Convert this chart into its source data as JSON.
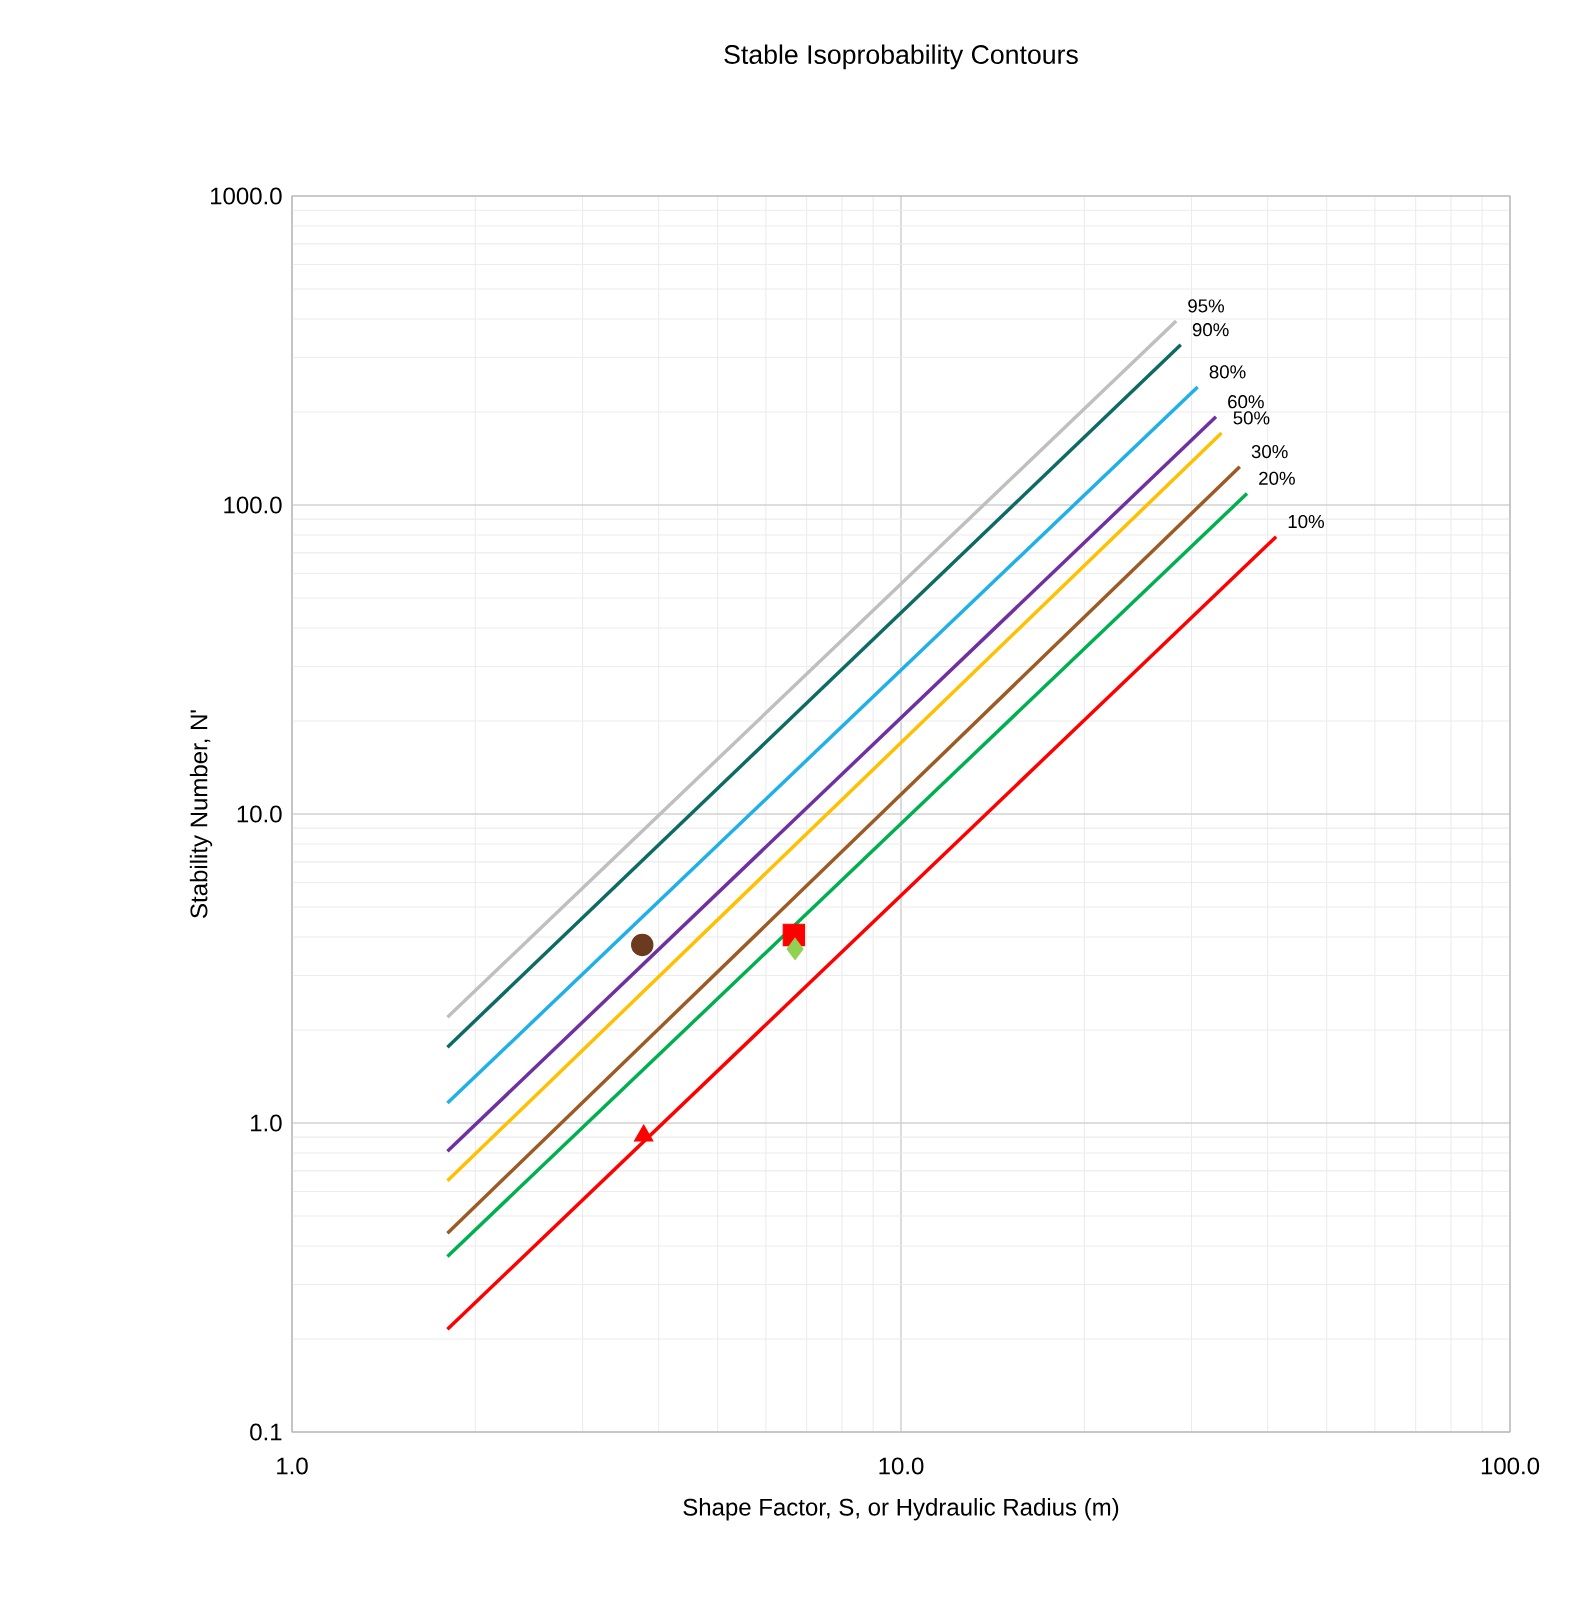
{
  "chart_data": {
    "type": "line",
    "title": "Stable Isoprobability Contours",
    "xlabel": "Shape Factor, S, or Hydraulic Radius (m)",
    "ylabel": "Stability Number, N'",
    "log": "xy",
    "grid": true,
    "legend": false,
    "xlim": [
      1,
      100
    ],
    "ylim": [
      0.1,
      1000
    ],
    "xticks": [
      {
        "value": 1,
        "label": "1.0"
      },
      {
        "value": 10,
        "label": "10.0"
      },
      {
        "value": 100,
        "label": "100.0"
      }
    ],
    "yticks": [
      {
        "value": 0.1,
        "label": "0.1"
      },
      {
        "value": 1,
        "label": "1.0"
      },
      {
        "value": 10,
        "label": "10.0"
      },
      {
        "value": 100,
        "label": "100.0"
      },
      {
        "value": 1000,
        "label": "1000.0"
      }
    ],
    "series": [
      {
        "name": "95%",
        "color": "#bfbfbf",
        "x": [
          1.8,
          28.3
        ],
        "values": [
          2.2,
          394
        ]
      },
      {
        "name": "90%",
        "color": "#0e6b63",
        "x": [
          1.8,
          28.8
        ],
        "values": [
          1.76,
          330
        ]
      },
      {
        "name": "80%",
        "color": "#1fb0e8",
        "x": [
          1.8,
          30.7
        ],
        "values": [
          1.16,
          241
        ]
      },
      {
        "name": "60%",
        "color": "#7030a0",
        "x": [
          1.8,
          32.9
        ],
        "values": [
          0.81,
          193
        ]
      },
      {
        "name": "50%",
        "color": "#ffc000",
        "x": [
          1.8,
          33.6
        ],
        "values": [
          0.65,
          171
        ]
      },
      {
        "name": "30%",
        "color": "#9c5a24",
        "x": [
          1.8,
          36.0
        ],
        "values": [
          0.44,
          133
        ]
      },
      {
        "name": "20%",
        "color": "#00b050",
        "x": [
          1.8,
          37.0
        ],
        "values": [
          0.37,
          109
        ]
      },
      {
        "name": "10%",
        "color": "#ff0000",
        "x": [
          1.8,
          41.3
        ],
        "values": [
          0.215,
          79
        ]
      },
      {
        "type": "scatter",
        "color": "#6b3a1f",
        "marker": "circle",
        "x": [
          3.76
        ],
        "values": [
          3.77
        ]
      },
      {
        "type": "scatter",
        "color": "#ff0000",
        "marker": "triangle",
        "x": [
          3.78
        ],
        "values": [
          0.91
        ]
      },
      {
        "type": "scatter",
        "color": "#ff0000",
        "marker": "square",
        "x": [
          6.67
        ],
        "values": [
          4.06
        ]
      },
      {
        "type": "scatter",
        "color": "#92d050",
        "marker": "diamond",
        "x": [
          6.7
        ],
        "values": [
          3.66
        ]
      }
    ]
  }
}
